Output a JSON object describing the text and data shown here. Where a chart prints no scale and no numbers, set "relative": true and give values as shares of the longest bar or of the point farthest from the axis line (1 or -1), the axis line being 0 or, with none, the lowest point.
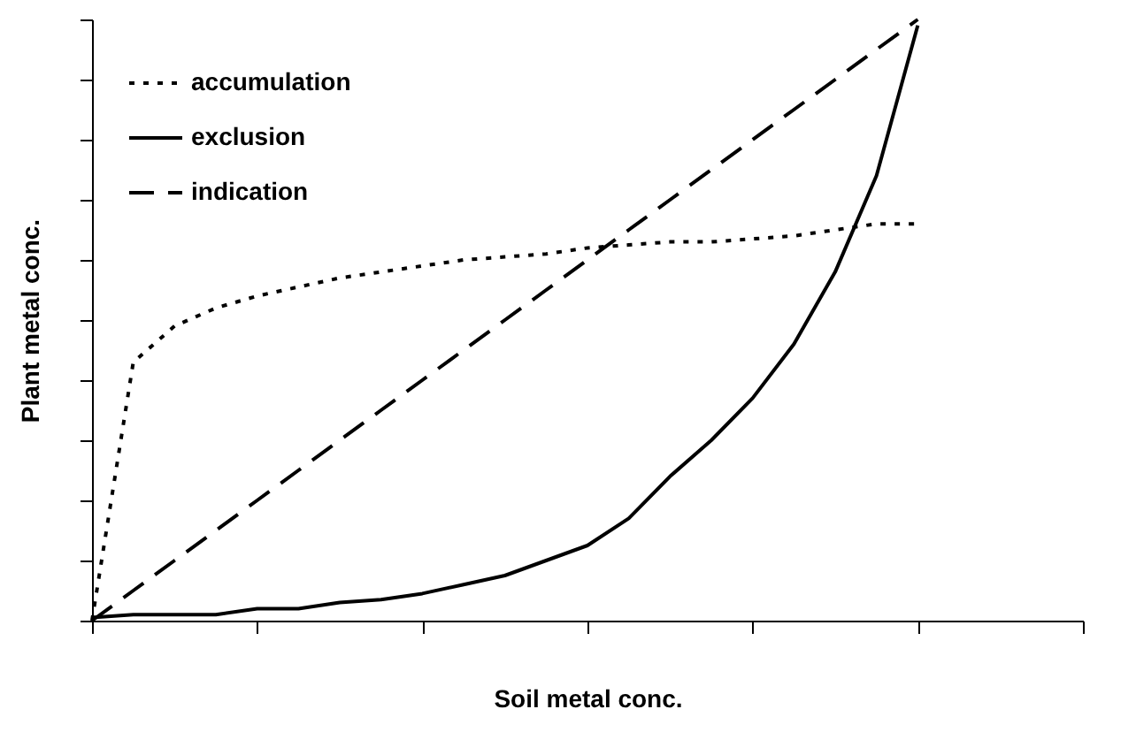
{
  "chart_data": {
    "type": "line",
    "relative": true,
    "xlabel": "Soil metal conc.",
    "ylabel": "Plant metal conc.",
    "legend": "top left",
    "grid": false,
    "marker": "none",
    "categories": [
      null,
      null,
      null,
      null,
      null,
      null,
      null,
      null,
      null,
      null,
      null,
      null,
      null,
      null,
      null,
      null,
      null,
      null,
      null,
      null,
      null,
      null,
      null,
      null,
      null
    ],
    "series": [
      {
        "name": "accumulation",
        "color": "#000000",
        "line_style": "dotted",
        "values": [
          0,
          0.43,
          0.49,
          0.52,
          0.54,
          0.555,
          0.57,
          0.58,
          0.59,
          0.6,
          0.605,
          0.61,
          0.62,
          0.625,
          0.63,
          0.63,
          0.635,
          0.64,
          0.65,
          0.66,
          0.66,
          null,
          null,
          null,
          null
        ]
      },
      {
        "name": "exclusion",
        "color": "#000000",
        "line_style": "solid",
        "values": [
          0.005,
          0.01,
          0.01,
          0.01,
          0.02,
          0.02,
          0.03,
          0.035,
          0.045,
          0.06,
          0.075,
          0.1,
          0.125,
          0.17,
          0.24,
          0.3,
          0.37,
          0.46,
          0.58,
          0.74,
          0.99,
          null,
          null,
          null,
          null
        ]
      },
      {
        "name": "indication",
        "color": "#000000",
        "line_style": "dashed",
        "values": [
          0,
          0.05,
          0.1,
          0.15,
          0.2,
          0.25,
          0.3,
          0.35,
          0.4,
          0.45,
          0.5,
          0.55,
          0.6,
          0.65,
          0.7,
          0.75,
          0.8,
          0.85,
          0.9,
          0.95,
          1,
          null,
          null,
          null,
          null
        ]
      }
    ]
  }
}
